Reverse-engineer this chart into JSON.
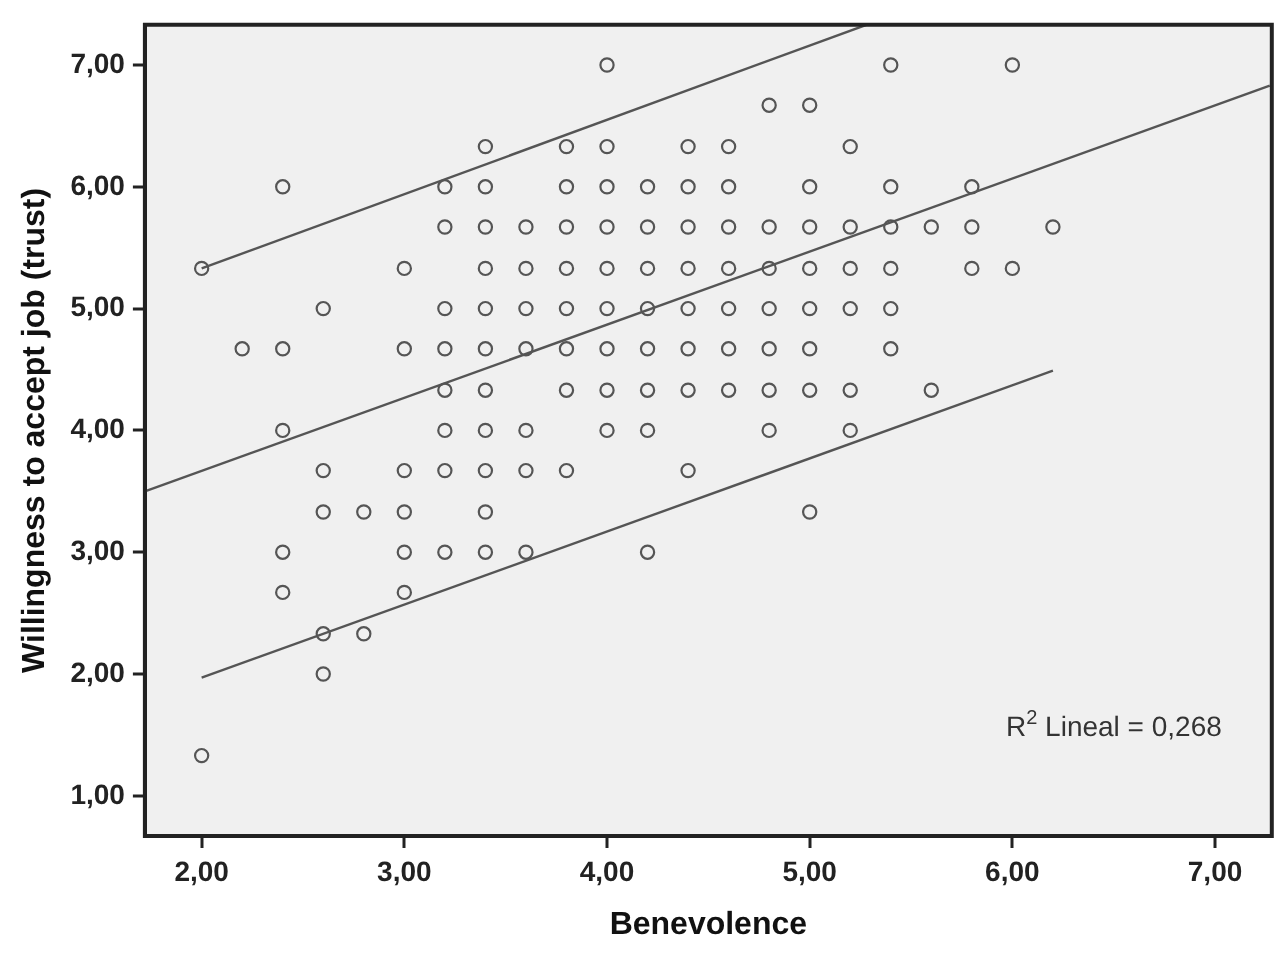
{
  "chart_data": {
    "type": "scatter",
    "xlabel": "Benevolence",
    "ylabel": "Willingness to accept job (trust)",
    "annotations": [
      "R$^{2}$ Lineal = 0,268"
    ],
    "xlim": [
      1.72,
      7.28
    ],
    "ylim": [
      0.67,
      7.33
    ],
    "xticks": [
      {
        "value": 2,
        "label": "2,00"
      },
      {
        "value": 3,
        "label": "3,00"
      },
      {
        "value": 4,
        "label": "4,00"
      },
      {
        "value": 5,
        "label": "5,00"
      },
      {
        "value": 6,
        "label": "6,00"
      },
      {
        "value": 7,
        "label": "7,00"
      }
    ],
    "yticks": [
      {
        "value": 1,
        "label": "1,00"
      },
      {
        "value": 2,
        "label": "2,00"
      },
      {
        "value": 3,
        "label": "3,00"
      },
      {
        "value": 4,
        "label": "4,00"
      },
      {
        "value": 5,
        "label": "5,00"
      },
      {
        "value": 6,
        "label": "6,00"
      },
      {
        "value": 7,
        "label": "7,00"
      }
    ],
    "grid": false,
    "legend": false,
    "marker": "circle",
    "series": [
      {
        "color": "#555555",
        "x": [
          4.0,
          5.4,
          6.0,
          4.8,
          5.0,
          3.4,
          3.8,
          4.0,
          4.4,
          4.6,
          5.2,
          2.4,
          3.2,
          3.4,
          3.8,
          4.0,
          4.2,
          4.4,
          4.6,
          5.0,
          5.4,
          5.8,
          3.2,
          3.4,
          3.6,
          3.8,
          4.0,
          4.2,
          4.4,
          4.6,
          4.8,
          5.0,
          5.2,
          5.4,
          5.6,
          5.8,
          6.2,
          2.0,
          3.0,
          3.4,
          3.6,
          3.8,
          4.0,
          4.2,
          4.4,
          4.6,
          4.8,
          5.0,
          5.2,
          5.4,
          5.8,
          6.0,
          2.6,
          3.2,
          3.4,
          3.6,
          3.8,
          4.0,
          4.2,
          4.4,
          4.6,
          4.8,
          5.0,
          5.2,
          5.4,
          2.2,
          2.4,
          3.0,
          3.2,
          3.4,
          3.6,
          3.8,
          4.0,
          4.2,
          4.4,
          4.6,
          4.8,
          5.0,
          5.4,
          3.2,
          3.4,
          3.8,
          4.0,
          4.2,
          4.4,
          4.6,
          4.8,
          5.0,
          5.2,
          5.6,
          2.4,
          3.2,
          3.4,
          3.6,
          4.0,
          4.2,
          4.8,
          5.2,
          2.6,
          3.0,
          3.2,
          3.4,
          3.6,
          3.8,
          4.4,
          2.6,
          2.8,
          3.0,
          3.4,
          5.0,
          2.4,
          3.0,
          3.2,
          3.4,
          3.6,
          4.2,
          2.4,
          3.0,
          2.6,
          2.8,
          2.6,
          2.0
        ],
        "values": [
          7,
          7,
          7,
          6.67,
          6.67,
          6.33,
          6.33,
          6.33,
          6.33,
          6.33,
          6.33,
          6,
          6,
          6,
          6,
          6,
          6,
          6,
          6,
          6,
          6,
          6,
          5.67,
          5.67,
          5.67,
          5.67,
          5.67,
          5.67,
          5.67,
          5.67,
          5.67,
          5.67,
          5.67,
          5.67,
          5.67,
          5.67,
          5.67,
          5.33,
          5.33,
          5.33,
          5.33,
          5.33,
          5.33,
          5.33,
          5.33,
          5.33,
          5.33,
          5.33,
          5.33,
          5.33,
          5.33,
          5.33,
          5,
          5,
          5,
          5,
          5,
          5,
          5,
          5,
          5,
          5,
          5,
          5,
          5,
          4.67,
          4.67,
          4.67,
          4.67,
          4.67,
          4.67,
          4.67,
          4.67,
          4.67,
          4.67,
          4.67,
          4.67,
          4.67,
          4.67,
          4.33,
          4.33,
          4.33,
          4.33,
          4.33,
          4.33,
          4.33,
          4.33,
          4.33,
          4.33,
          4.33,
          4,
          4,
          4,
          4,
          4,
          4,
          4,
          4,
          3.67,
          3.67,
          3.67,
          3.67,
          3.67,
          3.67,
          3.67,
          3.33,
          3.33,
          3.33,
          3.33,
          3.33,
          3,
          3,
          3,
          3,
          3,
          3,
          2.67,
          2.67,
          2.33,
          2.33,
          2,
          1.33
        ]
      },
      {
        "type": "line",
        "color": "#555555",
        "marker": "none",
        "x": [
          1.72,
          7.27
        ],
        "values": [
          3.5,
          6.83
        ]
      },
      {
        "type": "line",
        "color": "#555555",
        "marker": "none",
        "x": [
          2.0,
          5.28
        ],
        "values": [
          5.33,
          7.33
        ]
      },
      {
        "type": "line",
        "color": "#555555",
        "marker": "none",
        "x": [
          2.0,
          6.2
        ],
        "values": [
          1.97,
          4.49
        ]
      }
    ]
  }
}
